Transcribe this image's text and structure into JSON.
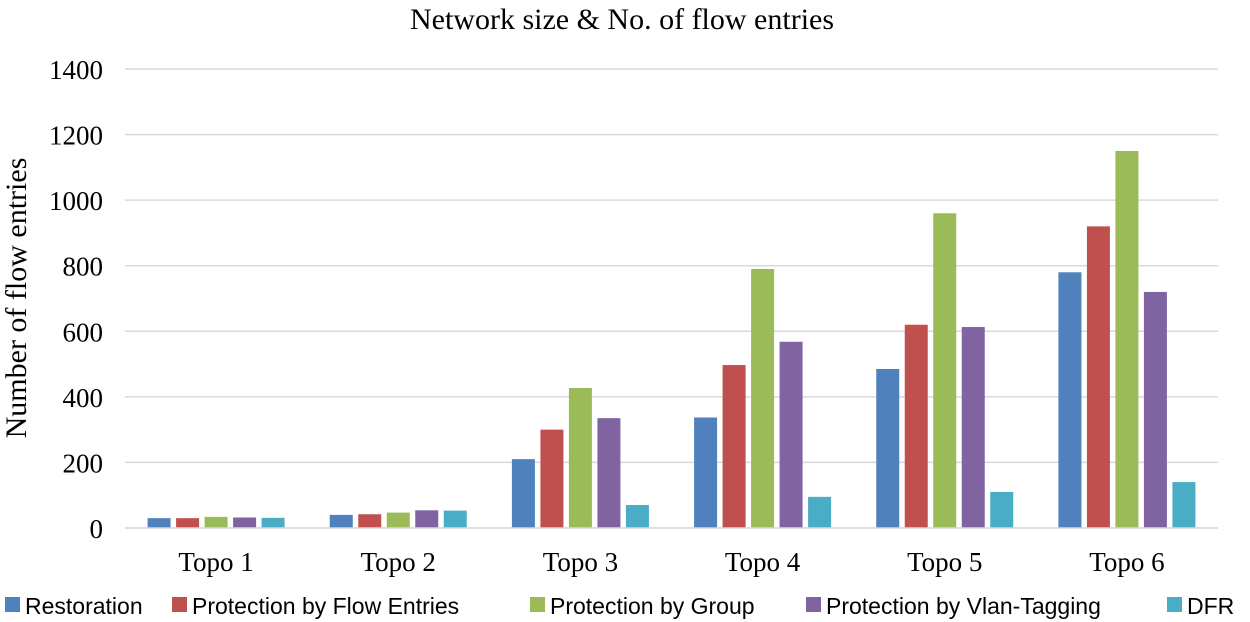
{
  "chart_data": {
    "type": "bar",
    "title": "Network size & No. of flow entries",
    "xlabel": "",
    "ylabel": "Number of flow entries",
    "categories": [
      "Topo 1",
      "Topo 2",
      "Topo 3",
      "Topo 4",
      "Topo 5",
      "Topo 6"
    ],
    "ylim": [
      0,
      1400
    ],
    "yticks": [
      0,
      200,
      400,
      600,
      800,
      1000,
      1200,
      1400
    ],
    "grid": true,
    "legend_position": "bottom",
    "series": [
      {
        "name": "Restoration",
        "color": "#4f81bd",
        "values": [
          30,
          40,
          210,
          337,
          485,
          780
        ]
      },
      {
        "name": "Protection by Flow Entries",
        "color": "#c0504d",
        "values": [
          30,
          42,
          300,
          497,
          620,
          920
        ]
      },
      {
        "name": "Protection by Group",
        "color": "#9bbb59",
        "values": [
          34,
          47,
          427,
          790,
          960,
          1150
        ]
      },
      {
        "name": "Protection by Vlan-Tagging",
        "color": "#8064a2",
        "values": [
          32,
          54,
          335,
          568,
          613,
          720
        ]
      },
      {
        "name": "DFR",
        "color": "#4bacc6",
        "values": [
          31,
          53,
          70,
          95,
          110,
          140
        ]
      }
    ]
  }
}
